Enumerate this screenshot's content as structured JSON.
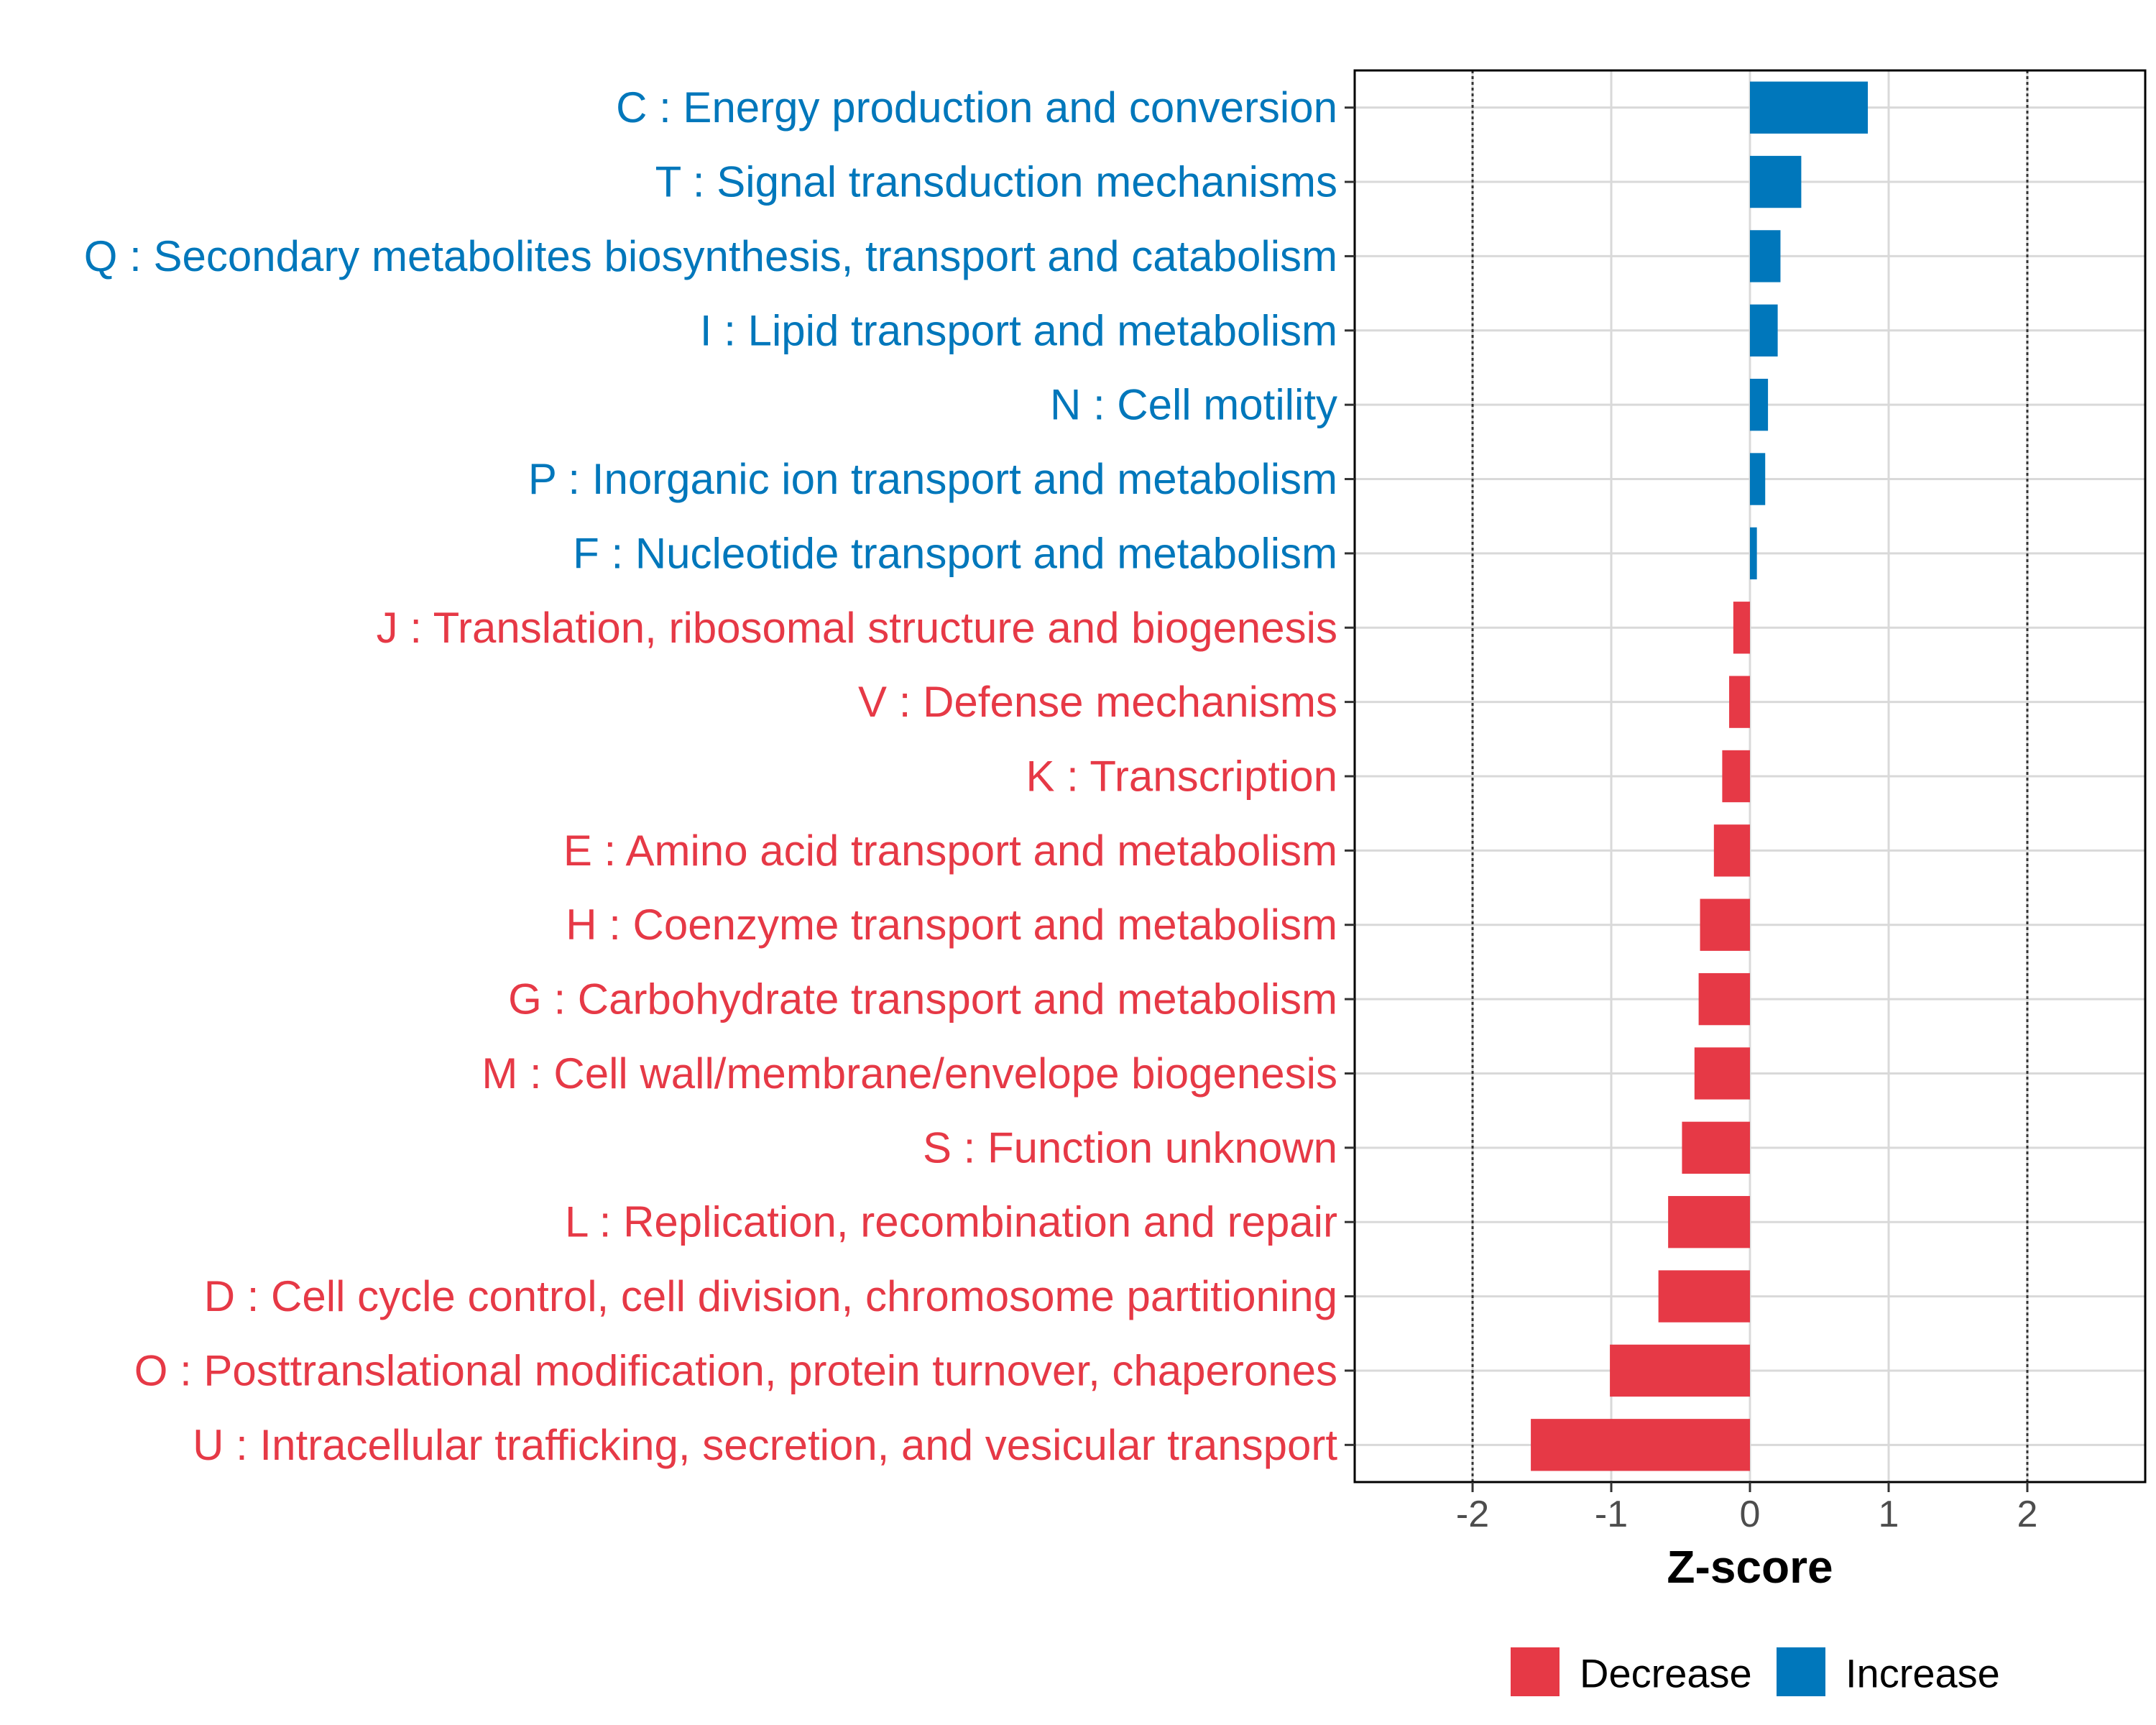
{
  "chart_data": {
    "type": "bar",
    "orientation": "horizontal",
    "title": "",
    "xlabel": "Z-score",
    "ylabel": "",
    "xlim": [
      -2.85,
      2.85
    ],
    "xticks": [
      -2,
      -1,
      0,
      1,
      2
    ],
    "xtick_labels": [
      "-2",
      "-1",
      "0",
      "1",
      "2"
    ],
    "reference_lines": [
      -2,
      2
    ],
    "grid": true,
    "legend_position": "bottom",
    "legend": [
      {
        "name": "Decrease",
        "color": "#e63946"
      },
      {
        "name": "Increase",
        "color": "#0077bb"
      }
    ],
    "categories": [
      "C : Energy production and conversion",
      "T : Signal transduction mechanisms",
      "Q : Secondary metabolites biosynthesis, transport and catabolism",
      "I : Lipid transport and metabolism",
      "N : Cell motility",
      "P : Inorganic ion transport and metabolism",
      "F : Nucleotide transport and metabolism",
      "J : Translation, ribosomal structure and biogenesis",
      "V : Defense mechanisms",
      "K : Transcription",
      "E : Amino acid transport and metabolism",
      "H : Coenzyme transport and metabolism",
      "G : Carbohydrate transport and metabolism",
      "M : Cell wall/membrane/envelope biogenesis",
      "S : Function unknown",
      "L : Replication, recombination and repair",
      "D : Cell cycle control, cell division, chromosome partitioning",
      "O : Posttranslational modification, protein turnover, chaperones",
      "U : Intracellular trafficking, secretion, and vesicular transport"
    ],
    "values": [
      0.85,
      0.37,
      0.22,
      0.2,
      0.13,
      0.11,
      0.05,
      -0.12,
      -0.15,
      -0.2,
      -0.26,
      -0.36,
      -0.37,
      -0.4,
      -0.49,
      -0.59,
      -0.66,
      -1.01,
      -1.58
    ],
    "groups": [
      "Increase",
      "Increase",
      "Increase",
      "Increase",
      "Increase",
      "Increase",
      "Increase",
      "Decrease",
      "Decrease",
      "Decrease",
      "Decrease",
      "Decrease",
      "Decrease",
      "Decrease",
      "Decrease",
      "Decrease",
      "Decrease",
      "Decrease",
      "Decrease"
    ]
  }
}
